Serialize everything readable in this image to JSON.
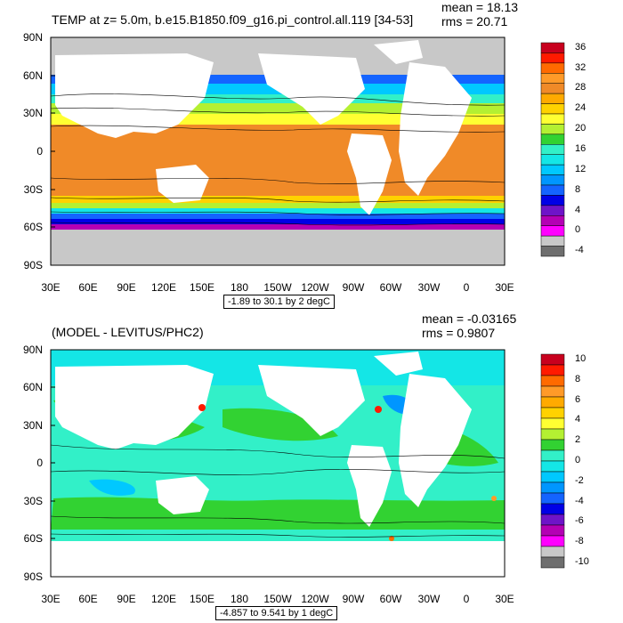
{
  "panels": [
    {
      "id": "temp",
      "title": "TEMP at z=   5.0m, b.e15.B1850.f09_g16.pi_control.all.119 [34-53]",
      "mean": "mean = 18.13",
      "rms": "rms = 20.71",
      "range_label": "-1.89 to 30.1 by 2 degC",
      "lat_labels": [
        "90N",
        "60N",
        "30N",
        "0",
        "30S",
        "60S",
        "90S"
      ],
      "lon_labels": [
        "30E",
        "60E",
        "90E",
        "120E",
        "150E",
        "180",
        "150W",
        "120W",
        "90W",
        "60W",
        "30W",
        "0",
        "30E"
      ],
      "colorbar": {
        "labels": [
          "36",
          "32",
          "28",
          "24",
          "20",
          "16",
          "12",
          "8",
          "4",
          "0",
          "-4"
        ],
        "colors": [
          "#c8001e",
          "#ff1a00",
          "#ff6a00",
          "#ff9a28",
          "#f08a28",
          "#ffaa00",
          "#ffd200",
          "#ffff32",
          "#b4f032",
          "#32d232",
          "#32f0c8",
          "#14e6e6",
          "#00c8ff",
          "#0096ff",
          "#1464ff",
          "#0000e6",
          "#6e14c8",
          "#b400b4",
          "#ff00ff",
          "#c8c8c8",
          "#6e6e6e"
        ]
      }
    },
    {
      "id": "diff",
      "title": "(MODEL - LEVITUS/PHC2)",
      "mean": "mean = -0.03165",
      "rms": "rms = 0.9807",
      "range_label": "-4.857 to 9.541 by 1 degC",
      "lat_labels": [
        "90N",
        "60N",
        "30N",
        "0",
        "30S",
        "60S",
        "90S"
      ],
      "lon_labels": [
        "30E",
        "60E",
        "90E",
        "120E",
        "150E",
        "180",
        "150W",
        "120W",
        "90W",
        "60W",
        "30W",
        "0",
        "30E"
      ],
      "colorbar": {
        "labels": [
          "10",
          "8",
          "6",
          "4",
          "2",
          "0",
          "-2",
          "-4",
          "-6",
          "-8",
          "-10"
        ],
        "colors": [
          "#c8001e",
          "#ff1a00",
          "#ff6a00",
          "#ff9a28",
          "#ffaa00",
          "#ffd200",
          "#ffff32",
          "#b4f032",
          "#32d232",
          "#32f0c8",
          "#14e6e6",
          "#00c8ff",
          "#0096ff",
          "#1464ff",
          "#0000e6",
          "#6e14c8",
          "#b400b4",
          "#ff00ff",
          "#c8c8c8",
          "#6e6e6e"
        ]
      }
    }
  ]
}
